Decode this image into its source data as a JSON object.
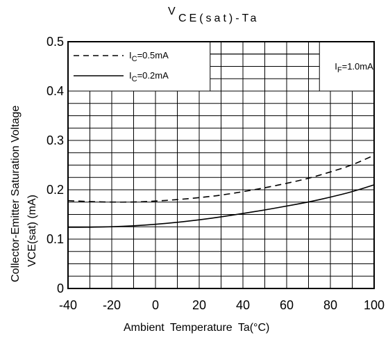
{
  "chart_data": {
    "type": "line",
    "title": "VCE(sat)-Ta",
    "title_main": "V",
    "title_sub": "CE(sat)-Ta",
    "xlabel": "Ambient Temperature    Ta(°C)",
    "ylabel_line1": "Collector-Emitter Saturation Voltage",
    "ylabel_line2": "VCE(sat) (mA)",
    "xlim": [
      -40,
      100
    ],
    "ylim": [
      0,
      0.5
    ],
    "x_ticks": [
      -40,
      -20,
      0,
      20,
      40,
      60,
      80,
      100
    ],
    "x_tick_labels": [
      "-40",
      "-20",
      "0",
      "20",
      "40",
      "60",
      "80",
      "100"
    ],
    "y_ticks": [
      0,
      0.1,
      0.2,
      0.3,
      0.4,
      0.5
    ],
    "y_tick_labels": [
      "0",
      "0.1",
      "0.2",
      "0.3",
      "0.4",
      "0.5"
    ],
    "grid": true,
    "legend_position": "top-left",
    "annotation": "IF=1.0mA",
    "series": [
      {
        "name": "IC=0.5mA",
        "style": "dashed",
        "x": [
          -40,
          -30,
          -20,
          -10,
          0,
          10,
          20,
          30,
          40,
          50,
          60,
          70,
          80,
          90,
          100
        ],
        "values": [
          0.178,
          0.176,
          0.175,
          0.175,
          0.177,
          0.18,
          0.184,
          0.189,
          0.196,
          0.204,
          0.213,
          0.223,
          0.236,
          0.25,
          0.27
        ]
      },
      {
        "name": "IC=0.2mA",
        "style": "solid",
        "x": [
          -40,
          -30,
          -20,
          -10,
          0,
          10,
          20,
          30,
          40,
          50,
          60,
          70,
          80,
          90,
          100
        ],
        "values": [
          0.124,
          0.124,
          0.125,
          0.127,
          0.13,
          0.134,
          0.139,
          0.145,
          0.152,
          0.159,
          0.167,
          0.175,
          0.185,
          0.196,
          0.21
        ]
      }
    ]
  }
}
